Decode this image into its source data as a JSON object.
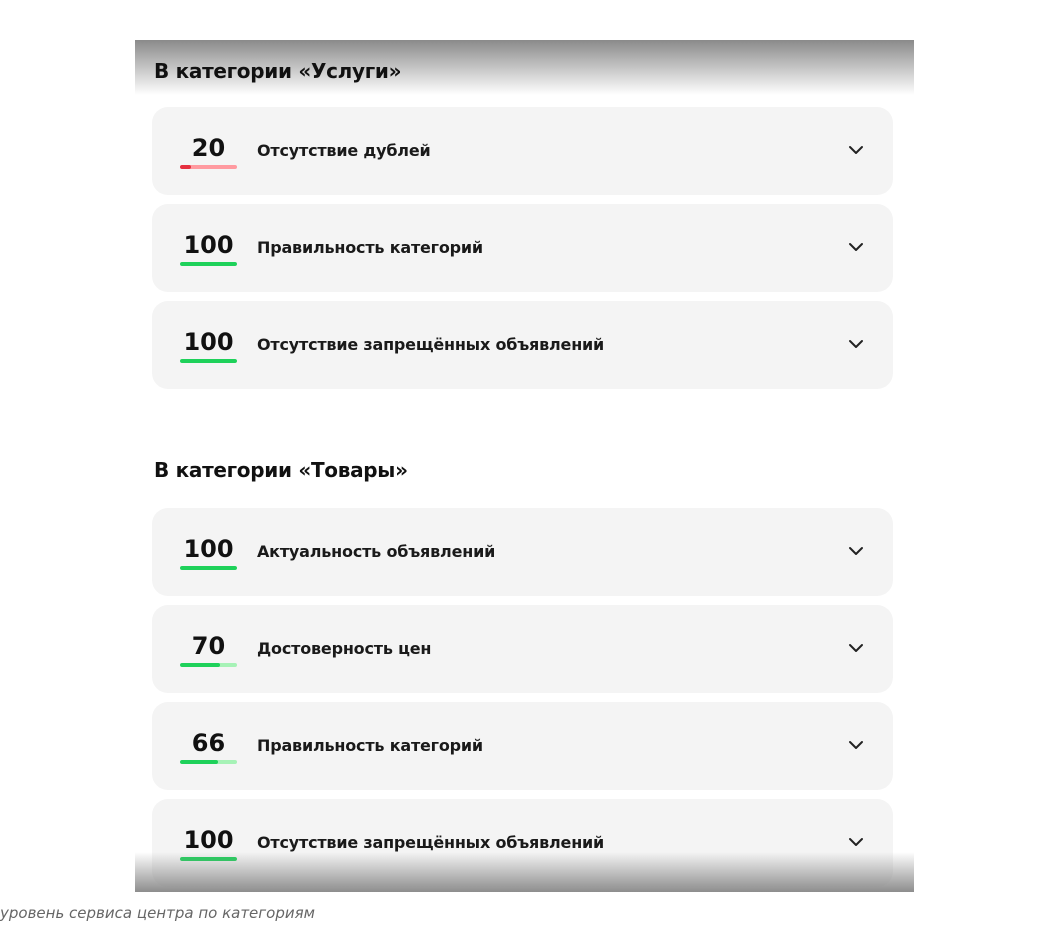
{
  "sections": [
    {
      "title": "В категории «Услуги»",
      "items": [
        {
          "score": "20",
          "value": 20,
          "label": "Отсутствие дублей",
          "color": "#e5303f",
          "track": "#ff9aa0"
        },
        {
          "score": "100",
          "value": 100,
          "label": "Правильность категорий",
          "color": "#1ed15a",
          "track": "#a6f2b6"
        },
        {
          "score": "100",
          "value": 100,
          "label": "Отсутствие запрещённых объявлений",
          "color": "#1ed15a",
          "track": "#a6f2b6"
        }
      ]
    },
    {
      "title": "В категории «Товары»",
      "items": [
        {
          "score": "100",
          "value": 100,
          "label": "Актуальность объявлений",
          "color": "#1ed15a",
          "track": "#a6f2b6"
        },
        {
          "score": "70",
          "value": 70,
          "label": "Достоверность цен",
          "color": "#1ed15a",
          "track": "#a6f2b6"
        },
        {
          "score": "66",
          "value": 66,
          "label": "Правильность категорий",
          "color": "#1ed15a",
          "track": "#a6f2b6"
        },
        {
          "score": "100",
          "value": 100,
          "label": "Отсутствие запрещённых объявлений",
          "color": "#1ed15a",
          "track": "#a6f2b6"
        }
      ]
    }
  ],
  "caption": "уровень сервиса центра по категориям",
  "icons": {
    "expand": "chevron-down-icon"
  }
}
